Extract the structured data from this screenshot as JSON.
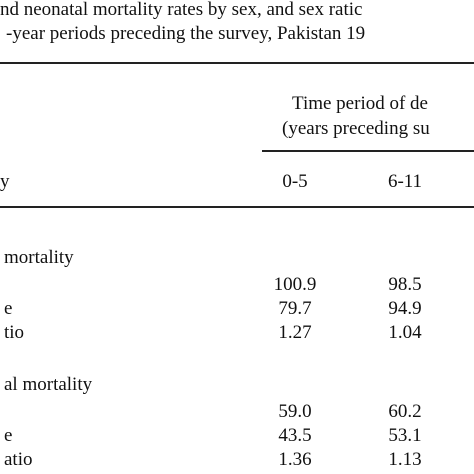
{
  "title": [
    "nd neonatal mortality rates by sex, and sex ratic",
    "-year periods preceding the survey, Pakistan 19"
  ],
  "spanner": [
    "Time period of de",
    "(years preceding su"
  ],
  "columns": [
    "y",
    "0-5",
    "6-11"
  ],
  "sections": [
    {
      "label": "mortality",
      "rows": [
        {
          "cells": [
            "100.9",
            "98.5"
          ]
        },
        {
          "label": "e",
          "cells": [
            "79.7",
            "94.9"
          ]
        },
        {
          "label": "tio",
          "cells": [
            "1.27",
            "1.04"
          ]
        }
      ]
    },
    {
      "label": "al mortality",
      "rows": [
        {
          "cells": [
            "59.0",
            "60.2"
          ]
        },
        {
          "label": "e",
          "cells": [
            "43.5",
            "53.1"
          ]
        },
        {
          "label": "atio",
          "cells": [
            "1.36",
            "1.13"
          ]
        }
      ]
    }
  ]
}
